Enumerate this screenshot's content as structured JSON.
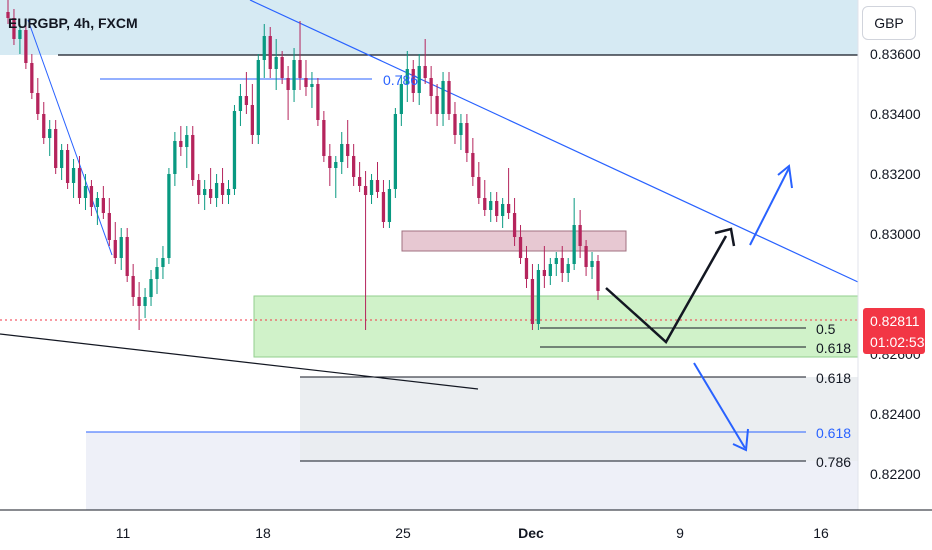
{
  "header": {
    "title": "EURGBP, 4h, FXCM"
  },
  "currency_button": "GBP",
  "price_tag": {
    "price": "0.82811",
    "countdown": "01:02:53",
    "color": "#f23645"
  },
  "colors": {
    "bull": "#089981",
    "bear": "#b5245c",
    "trendline": "#2962ff",
    "demand_zone": "#c8f0c0",
    "supply_zone": "#e7c8d2",
    "target_zone": "#e9ecf0",
    "top_band": "#d6eaf3"
  },
  "annotations": {
    "fib_top": "0.786",
    "fib_0_5": "0.5",
    "fib_0_618_a": "0.618",
    "fib_0_618_b": "0.618",
    "fib_0_618_c": "0.618",
    "fib_0_786_b": "0.786"
  },
  "chart_data": {
    "type": "candlestick",
    "title": "EURGBP, 4h, FXCM",
    "x_tick_labels": [
      "11",
      "18",
      "25",
      "Dec",
      "9",
      "16"
    ],
    "y_tick_labels": [
      "0.83600",
      "0.83400",
      "0.83200",
      "0.83000",
      "0.82600",
      "0.82400",
      "0.82200"
    ],
    "ylim": [
      0.8208,
      0.8378
    ],
    "current_price": 0.82811,
    "candles": [
      {
        "o": 0.8374,
        "h": 0.8378,
        "l": 0.837,
        "c": 0.8372
      },
      {
        "o": 0.8372,
        "h": 0.8375,
        "l": 0.8363,
        "c": 0.8365
      },
      {
        "o": 0.8365,
        "h": 0.837,
        "l": 0.836,
        "c": 0.8368
      },
      {
        "o": 0.8368,
        "h": 0.837,
        "l": 0.8355,
        "c": 0.8357
      },
      {
        "o": 0.8357,
        "h": 0.836,
        "l": 0.8345,
        "c": 0.8347
      },
      {
        "o": 0.8347,
        "h": 0.8352,
        "l": 0.8338,
        "c": 0.834
      },
      {
        "o": 0.834,
        "h": 0.8344,
        "l": 0.833,
        "c": 0.8332
      },
      {
        "o": 0.8332,
        "h": 0.8338,
        "l": 0.8326,
        "c": 0.8335
      },
      {
        "o": 0.8335,
        "h": 0.8338,
        "l": 0.832,
        "c": 0.8322
      },
      {
        "o": 0.8322,
        "h": 0.833,
        "l": 0.8318,
        "c": 0.8328
      },
      {
        "o": 0.8328,
        "h": 0.833,
        "l": 0.8315,
        "c": 0.8317
      },
      {
        "o": 0.8317,
        "h": 0.8325,
        "l": 0.8312,
        "c": 0.8322
      },
      {
        "o": 0.8322,
        "h": 0.8326,
        "l": 0.831,
        "c": 0.8312
      },
      {
        "o": 0.8312,
        "h": 0.832,
        "l": 0.8308,
        "c": 0.8316
      },
      {
        "o": 0.8316,
        "h": 0.8318,
        "l": 0.8306,
        "c": 0.8309
      },
      {
        "o": 0.8309,
        "h": 0.8314,
        "l": 0.8303,
        "c": 0.8312
      },
      {
        "o": 0.8312,
        "h": 0.8316,
        "l": 0.8305,
        "c": 0.8307
      },
      {
        "o": 0.8307,
        "h": 0.8312,
        "l": 0.8296,
        "c": 0.8298
      },
      {
        "o": 0.8298,
        "h": 0.8304,
        "l": 0.829,
        "c": 0.8292
      },
      {
        "o": 0.8292,
        "h": 0.8302,
        "l": 0.8288,
        "c": 0.8299
      },
      {
        "o": 0.8299,
        "h": 0.8302,
        "l": 0.8284,
        "c": 0.8286
      },
      {
        "o": 0.8286,
        "h": 0.829,
        "l": 0.8276,
        "c": 0.8279
      },
      {
        "o": 0.8279,
        "h": 0.8284,
        "l": 0.8268,
        "c": 0.8276
      },
      {
        "o": 0.8276,
        "h": 0.8282,
        "l": 0.8272,
        "c": 0.8279
      },
      {
        "o": 0.8279,
        "h": 0.8288,
        "l": 0.8276,
        "c": 0.8285
      },
      {
        "o": 0.8285,
        "h": 0.8292,
        "l": 0.828,
        "c": 0.8289
      },
      {
        "o": 0.8289,
        "h": 0.8296,
        "l": 0.8285,
        "c": 0.8292
      },
      {
        "o": 0.8292,
        "h": 0.8322,
        "l": 0.829,
        "c": 0.832
      },
      {
        "o": 0.832,
        "h": 0.8334,
        "l": 0.8316,
        "c": 0.8331
      },
      {
        "o": 0.8331,
        "h": 0.8336,
        "l": 0.8326,
        "c": 0.8329
      },
      {
        "o": 0.8329,
        "h": 0.8336,
        "l": 0.8322,
        "c": 0.8333
      },
      {
        "o": 0.8333,
        "h": 0.8336,
        "l": 0.8316,
        "c": 0.8318
      },
      {
        "o": 0.8318,
        "h": 0.832,
        "l": 0.831,
        "c": 0.8313
      },
      {
        "o": 0.8313,
        "h": 0.8318,
        "l": 0.8308,
        "c": 0.8315
      },
      {
        "o": 0.8315,
        "h": 0.8322,
        "l": 0.831,
        "c": 0.8312
      },
      {
        "o": 0.8312,
        "h": 0.832,
        "l": 0.8309,
        "c": 0.8317
      },
      {
        "o": 0.8317,
        "h": 0.8322,
        "l": 0.831,
        "c": 0.8313
      },
      {
        "o": 0.8313,
        "h": 0.8318,
        "l": 0.831,
        "c": 0.8315
      },
      {
        "o": 0.8315,
        "h": 0.8343,
        "l": 0.8313,
        "c": 0.8341
      },
      {
        "o": 0.8341,
        "h": 0.835,
        "l": 0.8336,
        "c": 0.8346
      },
      {
        "o": 0.8346,
        "h": 0.8354,
        "l": 0.834,
        "c": 0.8343
      },
      {
        "o": 0.8343,
        "h": 0.835,
        "l": 0.833,
        "c": 0.8333
      },
      {
        "o": 0.8333,
        "h": 0.836,
        "l": 0.833,
        "c": 0.8358
      },
      {
        "o": 0.8358,
        "h": 0.837,
        "l": 0.8352,
        "c": 0.8366
      },
      {
        "o": 0.8366,
        "h": 0.8369,
        "l": 0.8352,
        "c": 0.8355
      },
      {
        "o": 0.8355,
        "h": 0.8365,
        "l": 0.8348,
        "c": 0.8359
      },
      {
        "o": 0.8359,
        "h": 0.8361,
        "l": 0.835,
        "c": 0.8352
      },
      {
        "o": 0.8352,
        "h": 0.8356,
        "l": 0.8338,
        "c": 0.8348
      },
      {
        "o": 0.8348,
        "h": 0.8362,
        "l": 0.8344,
        "c": 0.8358
      },
      {
        "o": 0.8358,
        "h": 0.8371,
        "l": 0.8348,
        "c": 0.8352
      },
      {
        "o": 0.8352,
        "h": 0.8358,
        "l": 0.8346,
        "c": 0.8349
      },
      {
        "o": 0.8349,
        "h": 0.8354,
        "l": 0.8342,
        "c": 0.835
      },
      {
        "o": 0.835,
        "h": 0.8352,
        "l": 0.8336,
        "c": 0.8338
      },
      {
        "o": 0.8338,
        "h": 0.8341,
        "l": 0.8324,
        "c": 0.8326
      },
      {
        "o": 0.8326,
        "h": 0.833,
        "l": 0.8316,
        "c": 0.8322
      },
      {
        "o": 0.8322,
        "h": 0.8326,
        "l": 0.8312,
        "c": 0.8324
      },
      {
        "o": 0.8324,
        "h": 0.8334,
        "l": 0.832,
        "c": 0.833
      },
      {
        "o": 0.833,
        "h": 0.8338,
        "l": 0.8322,
        "c": 0.8326
      },
      {
        "o": 0.8326,
        "h": 0.833,
        "l": 0.8316,
        "c": 0.8319
      },
      {
        "o": 0.8319,
        "h": 0.8324,
        "l": 0.8314,
        "c": 0.8316
      },
      {
        "o": 0.8316,
        "h": 0.8321,
        "l": 0.8268,
        "c": 0.8313
      },
      {
        "o": 0.8313,
        "h": 0.832,
        "l": 0.831,
        "c": 0.8318
      },
      {
        "o": 0.8318,
        "h": 0.8324,
        "l": 0.8312,
        "c": 0.8314
      },
      {
        "o": 0.8314,
        "h": 0.8318,
        "l": 0.8302,
        "c": 0.8304
      },
      {
        "o": 0.8304,
        "h": 0.8318,
        "l": 0.8302,
        "c": 0.8315
      },
      {
        "o": 0.8315,
        "h": 0.8342,
        "l": 0.8312,
        "c": 0.834
      },
      {
        "o": 0.834,
        "h": 0.8353,
        "l": 0.8336,
        "c": 0.835
      },
      {
        "o": 0.835,
        "h": 0.8361,
        "l": 0.8344,
        "c": 0.8355
      },
      {
        "o": 0.8355,
        "h": 0.8358,
        "l": 0.8344,
        "c": 0.8347
      },
      {
        "o": 0.8347,
        "h": 0.836,
        "l": 0.8343,
        "c": 0.8356
      },
      {
        "o": 0.8356,
        "h": 0.8365,
        "l": 0.835,
        "c": 0.8352
      },
      {
        "o": 0.8352,
        "h": 0.8356,
        "l": 0.834,
        "c": 0.8346
      },
      {
        "o": 0.8346,
        "h": 0.835,
        "l": 0.8336,
        "c": 0.834
      },
      {
        "o": 0.834,
        "h": 0.8354,
        "l": 0.8336,
        "c": 0.8351
      },
      {
        "o": 0.8351,
        "h": 0.8354,
        "l": 0.8338,
        "c": 0.834
      },
      {
        "o": 0.834,
        "h": 0.8344,
        "l": 0.833,
        "c": 0.8333
      },
      {
        "o": 0.8333,
        "h": 0.834,
        "l": 0.8328,
        "c": 0.8337
      },
      {
        "o": 0.8337,
        "h": 0.834,
        "l": 0.8324,
        "c": 0.8327
      },
      {
        "o": 0.8327,
        "h": 0.8332,
        "l": 0.8316,
        "c": 0.8319
      },
      {
        "o": 0.8319,
        "h": 0.8324,
        "l": 0.831,
        "c": 0.8312
      },
      {
        "o": 0.8312,
        "h": 0.8318,
        "l": 0.8306,
        "c": 0.8308
      },
      {
        "o": 0.8308,
        "h": 0.8314,
        "l": 0.8304,
        "c": 0.8311
      },
      {
        "o": 0.8311,
        "h": 0.8314,
        "l": 0.8304,
        "c": 0.8306
      },
      {
        "o": 0.8306,
        "h": 0.8312,
        "l": 0.8302,
        "c": 0.831
      },
      {
        "o": 0.831,
        "h": 0.8322,
        "l": 0.8305,
        "c": 0.8307
      },
      {
        "o": 0.8307,
        "h": 0.8312,
        "l": 0.8296,
        "c": 0.8299
      },
      {
        "o": 0.8299,
        "h": 0.8303,
        "l": 0.829,
        "c": 0.8292
      },
      {
        "o": 0.8292,
        "h": 0.8296,
        "l": 0.8282,
        "c": 0.8285
      },
      {
        "o": 0.8285,
        "h": 0.829,
        "l": 0.8268,
        "c": 0.827
      },
      {
        "o": 0.827,
        "h": 0.829,
        "l": 0.8268,
        "c": 0.8288
      },
      {
        "o": 0.8288,
        "h": 0.8296,
        "l": 0.8282,
        "c": 0.8286
      },
      {
        "o": 0.8286,
        "h": 0.8292,
        "l": 0.8283,
        "c": 0.829
      },
      {
        "o": 0.829,
        "h": 0.8294,
        "l": 0.8286,
        "c": 0.8292
      },
      {
        "o": 0.8292,
        "h": 0.8296,
        "l": 0.8284,
        "c": 0.8287
      },
      {
        "o": 0.8287,
        "h": 0.8292,
        "l": 0.8284,
        "c": 0.829
      },
      {
        "o": 0.829,
        "h": 0.8312,
        "l": 0.8288,
        "c": 0.8303
      },
      {
        "o": 0.8303,
        "h": 0.8308,
        "l": 0.8292,
        "c": 0.8296
      },
      {
        "o": 0.8296,
        "h": 0.8298,
        "l": 0.8286,
        "c": 0.8289
      },
      {
        "o": 0.8289,
        "h": 0.8294,
        "l": 0.8285,
        "c": 0.8291
      },
      {
        "o": 0.8291,
        "h": 0.8293,
        "l": 0.8278,
        "c": 0.8281
      }
    ]
  }
}
